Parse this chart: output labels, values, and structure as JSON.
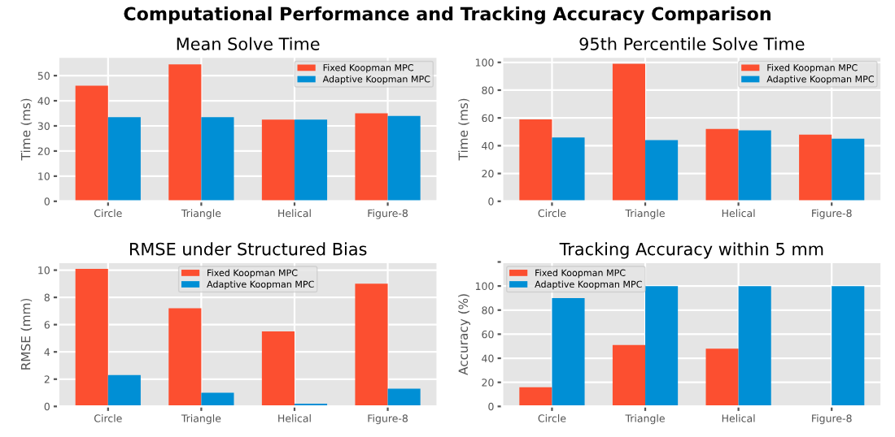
{
  "chart_data": [
    {
      "type": "bar",
      "annotations": [
        "Computational Performance and Tracking Accuracy Comparison"
      ],
      "title": "Mean Solve Time",
      "ylabel": "Time (ms)",
      "categories": [
        "Circle",
        "Triangle",
        "Helical",
        "Figure-8"
      ],
      "series": [
        {
          "name": "Fixed Koopman MPC",
          "color": "#fc4f30",
          "values": [
            46,
            54.5,
            32.5,
            35
          ]
        },
        {
          "name": "Adaptive Koopman MPC",
          "color": "#008fd5",
          "values": [
            33.5,
            33.5,
            32.5,
            34
          ]
        }
      ],
      "ylim": [
        0,
        57.5
      ],
      "yticks": [
        0,
        10,
        20,
        30,
        40,
        50
      ],
      "grid": true,
      "legend": "top right"
    },
    {
      "type": "bar",
      "title": "95th Percentile Solve Time",
      "ylabel": "Time (ms)",
      "categories": [
        "Circle",
        "Triangle",
        "Helical",
        "Figure-8"
      ],
      "series": [
        {
          "name": "Fixed Koopman MPC",
          "color": "#fc4f30",
          "values": [
            59,
            99,
            52,
            48
          ]
        },
        {
          "name": "Adaptive Koopman MPC",
          "color": "#008fd5",
          "values": [
            46,
            44,
            51,
            45
          ]
        }
      ],
      "ylim": [
        0,
        104
      ],
      "yticks": [
        0,
        20,
        40,
        60,
        80,
        100
      ],
      "grid": true,
      "legend": "top right"
    },
    {
      "type": "bar",
      "title": "RMSE under Structured Bias",
      "ylabel": "RMSE (mm)",
      "categories": [
        "Circle",
        "Triangle",
        "Helical",
        "Figure-8"
      ],
      "series": [
        {
          "name": "Fixed Koopman MPC",
          "color": "#fc4f30",
          "values": [
            10.1,
            7.2,
            5.5,
            9.0
          ]
        },
        {
          "name": "Adaptive Koopman MPC",
          "color": "#008fd5",
          "values": [
            2.3,
            1.0,
            0.2,
            1.3
          ]
        }
      ],
      "ylim": [
        0,
        10.6
      ],
      "yticks": [
        0,
        2,
        4,
        6,
        8,
        10
      ],
      "grid": true,
      "legend": "top"
    },
    {
      "type": "bar",
      "title": "Tracking Accuracy within 5 mm",
      "ylabel": "Accuracy (%)",
      "categories": [
        "Circle",
        "Triangle",
        "Helical",
        "Figure-8"
      ],
      "series": [
        {
          "name": "Fixed Koopman MPC",
          "color": "#fc4f30",
          "values": [
            16,
            51,
            48,
            0
          ]
        },
        {
          "name": "Adaptive Koopman MPC",
          "color": "#008fd5",
          "values": [
            90,
            100,
            100,
            100
          ]
        }
      ],
      "ylim": [
        0,
        120
      ],
      "yticks": [
        0,
        20,
        40,
        60,
        80,
        100,
        {
          "value": 120,
          "label": null
        }
      ],
      "grid": true,
      "legend": "top left"
    }
  ]
}
